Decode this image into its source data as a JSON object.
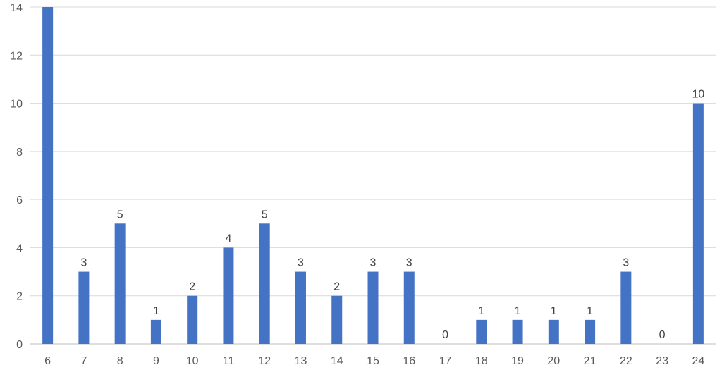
{
  "chart_data": {
    "type": "bar",
    "title": "",
    "xlabel": "",
    "ylabel": "",
    "categories": [
      "6",
      "7",
      "8",
      "9",
      "10",
      "11",
      "12",
      "13",
      "14",
      "15",
      "16",
      "17",
      "18",
      "19",
      "20",
      "21",
      "22",
      "23",
      "24"
    ],
    "values": [
      14,
      3,
      5,
      1,
      2,
      4,
      5,
      3,
      2,
      3,
      3,
      0,
      1,
      1,
      1,
      1,
      3,
      0,
      10
    ],
    "data_labels": [
      "",
      "3",
      "5",
      "1",
      "2",
      "4",
      "5",
      "3",
      "2",
      "3",
      "3",
      "0",
      "1",
      "1",
      "1",
      "1",
      "3",
      "0",
      "10"
    ],
    "ylim": [
      0,
      14
    ],
    "yticks": [
      0,
      2,
      4,
      6,
      8,
      10,
      12,
      14
    ],
    "grid": true,
    "legend": "none",
    "bar_color": "#4472C4"
  }
}
